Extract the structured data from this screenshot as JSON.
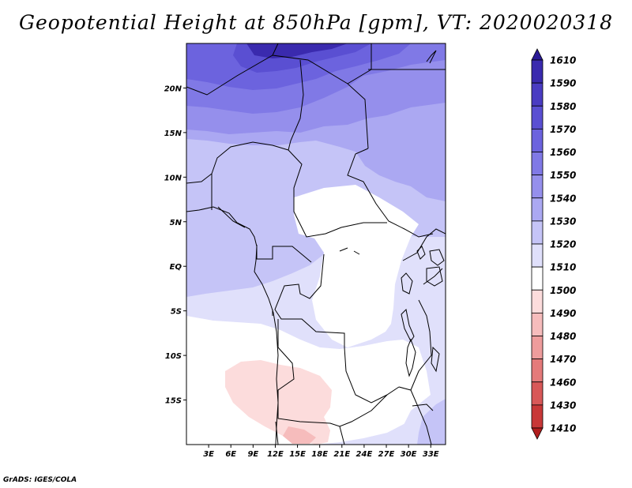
{
  "title": "Geopotential Height at 850hPa [gpm], VT: 2020020318",
  "footer": "GrADS: IGES/COLA",
  "map": {
    "lon_range": [
      0,
      35
    ],
    "lat_range": [
      -20,
      25
    ],
    "lon_labels": [
      {
        "lon": 3,
        "text": "3E"
      },
      {
        "lon": 6,
        "text": "6E"
      },
      {
        "lon": 9,
        "text": "9E"
      },
      {
        "lon": 12,
        "text": "12E"
      },
      {
        "lon": 15,
        "text": "15E"
      },
      {
        "lon": 18,
        "text": "18E"
      },
      {
        "lon": 21,
        "text": "21E"
      },
      {
        "lon": 24,
        "text": "24E"
      },
      {
        "lon": 27,
        "text": "27E"
      },
      {
        "lon": 30,
        "text": "30E"
      },
      {
        "lon": 33,
        "text": "33E"
      }
    ],
    "lat_labels": [
      {
        "lat": 20,
        "text": "20N"
      },
      {
        "lat": 15,
        "text": "15N"
      },
      {
        "lat": 10,
        "text": "10N"
      },
      {
        "lat": 5,
        "text": "5N"
      },
      {
        "lat": 0,
        "text": "EQ"
      },
      {
        "lat": -5,
        "text": "5S"
      },
      {
        "lat": -10,
        "text": "10S"
      },
      {
        "lat": -15,
        "text": "15S"
      }
    ]
  },
  "colorbar": {
    "levels": [
      "1610",
      "1590",
      "1580",
      "1570",
      "1560",
      "1550",
      "1540",
      "1530",
      "1520",
      "1510",
      "1500",
      "1490",
      "1480",
      "1470",
      "1460",
      "1430",
      "1410"
    ],
    "colors": [
      "#2a1a96",
      "#3a2aae",
      "#4a3cc2",
      "#5a4fd2",
      "#6c63de",
      "#8079e6",
      "#958fec",
      "#aba8f2",
      "#c5c4f7",
      "#e0e0fb",
      "#ffffff",
      "#fcdcdc",
      "#f6bcbc",
      "#ee9c9c",
      "#e47a7a",
      "#d85858",
      "#c83838",
      "#b01e1e"
    ]
  },
  "colors": {
    "c1590": "#3a2aae",
    "c1570": "#5a4fd2",
    "c1560": "#6c63de",
    "c1550": "#8079e6",
    "c1540": "#958fec",
    "c1530": "#aba8f2",
    "c1520": "#c5c4f7",
    "c1510": "#e0e0fb",
    "c1500": "#ffffff",
    "c1490": "#fcdcdc",
    "c1480": "#f6bcbc"
  }
}
